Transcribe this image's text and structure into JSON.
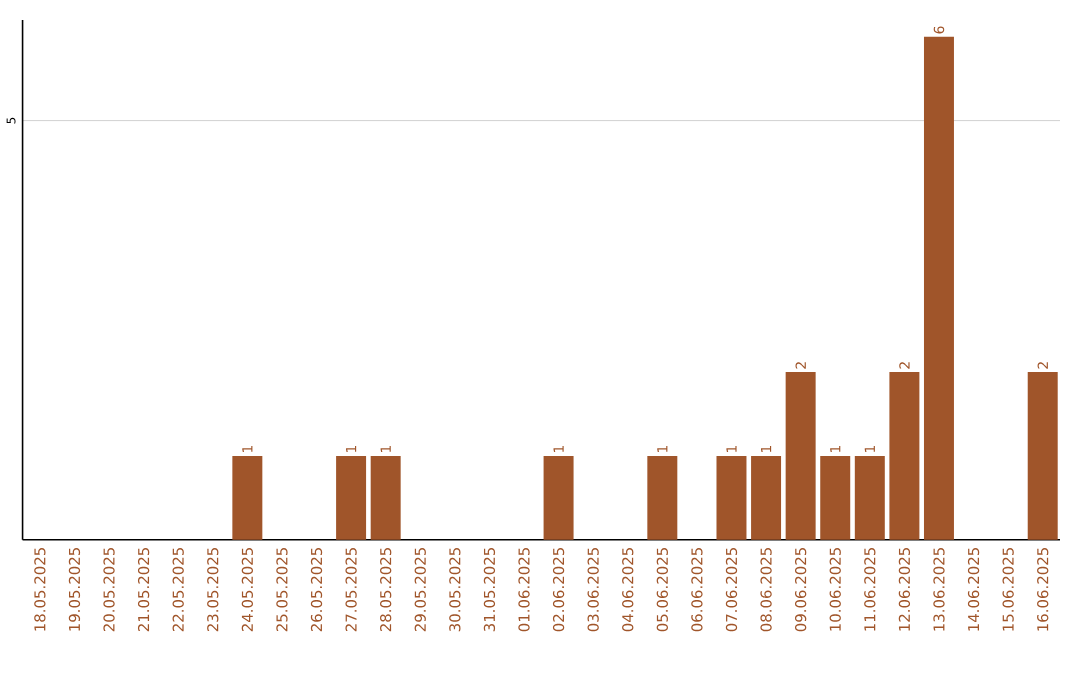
{
  "chart_data": {
    "type": "bar",
    "categories": [
      "18.05.2025",
      "19.05.2025",
      "20.05.2025",
      "21.05.2025",
      "22.05.2025",
      "23.05.2025",
      "24.05.2025",
      "25.05.2025",
      "26.05.2025",
      "27.05.2025",
      "28.05.2025",
      "29.05.2025",
      "30.05.2025",
      "31.05.2025",
      "01.06.2025",
      "02.06.2025",
      "03.06.2025",
      "04.06.2025",
      "05.06.2025",
      "06.06.2025",
      "07.06.2025",
      "08.06.2025",
      "09.06.2025",
      "10.06.2025",
      "11.06.2025",
      "12.06.2025",
      "13.06.2025",
      "14.06.2025",
      "15.06.2025",
      "16.06.2025"
    ],
    "values": [
      0,
      0,
      0,
      0,
      0,
      0,
      1,
      0,
      0,
      1,
      1,
      0,
      0,
      0,
      0,
      1,
      0,
      0,
      1,
      0,
      1,
      1,
      2,
      1,
      1,
      2,
      6,
      0,
      0,
      2
    ],
    "value_labels": [
      null,
      null,
      null,
      null,
      null,
      null,
      "1",
      null,
      null,
      "1",
      "1",
      null,
      null,
      null,
      null,
      "1",
      null,
      null,
      "1",
      null,
      "1",
      "1",
      "2",
      "1",
      "1",
      "2",
      "6",
      null,
      null,
      "2"
    ],
    "color": "#a0552a",
    "ylim": [
      0,
      6.2
    ],
    "yticks": [
      5
    ],
    "grid": "y"
  }
}
